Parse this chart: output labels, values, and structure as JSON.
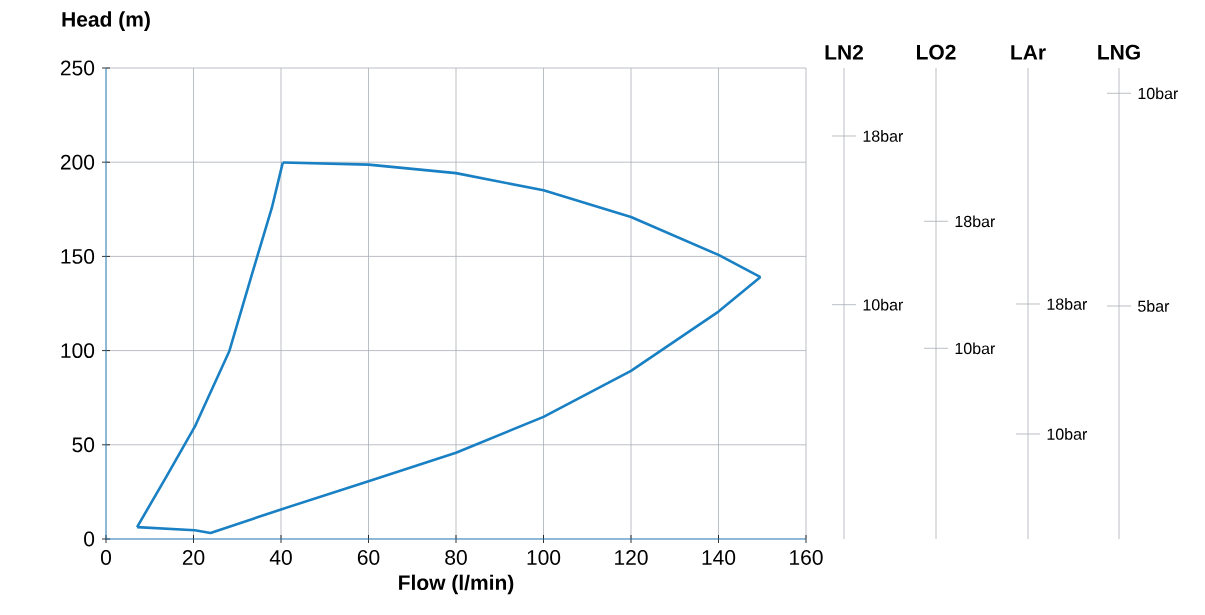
{
  "chart_data": [
    {
      "type": "line",
      "xlabel": "Flow (l/min)",
      "ylabel": "Head (m)",
      "xlim": [
        0,
        160
      ],
      "xticks": [
        0,
        20,
        40,
        60,
        80,
        100,
        120,
        140,
        160
      ],
      "ylim": [
        0,
        250
      ],
      "yticks": [
        0,
        50,
        100,
        150,
        200,
        250
      ],
      "grid": true,
      "marker": "none",
      "line_style": "solid",
      "series": [
        {
          "color": "#1a80c4",
          "x": [
            7.1,
            20.3,
            23.9,
            40,
            60,
            80,
            100,
            120,
            140,
            149.6
          ],
          "values": [
            6.3,
            4.6,
            3.2,
            15.7,
            30.7,
            45.8,
            64.8,
            89.2,
            120.7,
            139
          ]
        },
        {
          "color": "#1a80c4",
          "x": [
            40.4,
            60,
            80,
            100,
            120,
            140,
            149.6
          ],
          "values": [
            199.8,
            198.7,
            194.2,
            185.1,
            170.9,
            150.8,
            139
          ]
        },
        {
          "color": "#1a80c4",
          "x": [
            7.1,
            13.9,
            20.3,
            28.2,
            33.3,
            37.9,
            40.4
          ],
          "values": [
            6.3,
            33.5,
            59.6,
            99.8,
            140.1,
            175.7,
            199.8
          ]
        }
      ]
    },
    {
      "type": "other",
      "title": "LN2",
      "annotations": [
        "18bar",
        "10bar"
      ]
    },
    {
      "type": "other",
      "title": "LO2",
      "annotations": [
        "18bar",
        "10bar"
      ]
    },
    {
      "type": "other",
      "title": "LAr",
      "annotations": [
        "18bar",
        "10bar"
      ]
    },
    {
      "type": "other",
      "title": "LNG",
      "annotations": [
        "10bar",
        "5bar"
      ]
    }
  ]
}
